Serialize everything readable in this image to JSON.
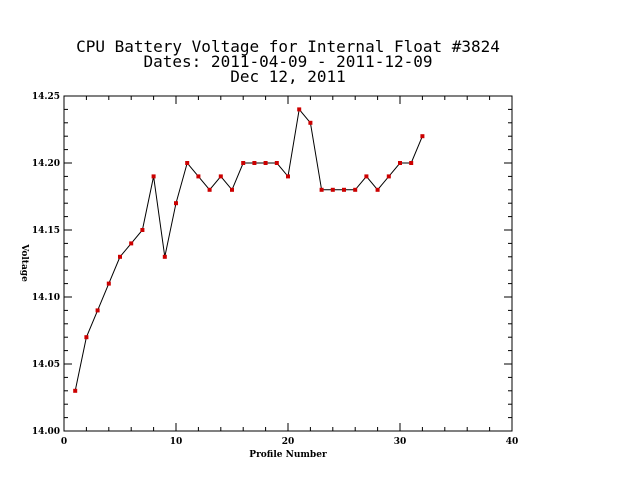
{
  "chart_data": {
    "type": "line",
    "title_lines": [
      "CPU Battery Voltage for Internal Float #3824",
      "Dates:  2011-04-09 -  2011-12-09",
      "Dec 12, 2011"
    ],
    "xlabel": "Profile Number",
    "ylabel": "Voltage",
    "xlim": [
      0,
      40
    ],
    "ylim": [
      14.0,
      14.25
    ],
    "x_ticks": [
      0,
      10,
      20,
      30,
      40
    ],
    "x_tick_labels": [
      "0",
      "10",
      "20",
      "30",
      "40"
    ],
    "y_ticks": [
      14.0,
      14.05,
      14.1,
      14.15,
      14.2,
      14.25
    ],
    "y_tick_labels": [
      "14.00",
      "14.05",
      "14.10",
      "14.15",
      "14.20",
      "14.25"
    ],
    "grid": false,
    "line_color": "#000000",
    "marker_color": "#cc0000",
    "series": [
      {
        "x": [
          1,
          2,
          3,
          4,
          5,
          6,
          7,
          8,
          9,
          10,
          11,
          12,
          13,
          14,
          15,
          16,
          17,
          18,
          19,
          20,
          21,
          22,
          23,
          24,
          25,
          26,
          27,
          28,
          29,
          30,
          31,
          32
        ],
        "values": [
          14.03,
          14.07,
          14.09,
          14.11,
          14.13,
          14.14,
          14.15,
          14.19,
          14.13,
          14.17,
          14.2,
          14.19,
          14.18,
          14.19,
          14.18,
          14.2,
          14.2,
          14.2,
          14.2,
          14.19,
          14.24,
          14.23,
          14.18,
          14.18,
          14.18,
          14.18,
          14.19,
          14.18,
          14.19,
          14.2,
          14.2,
          14.22
        ]
      }
    ]
  }
}
